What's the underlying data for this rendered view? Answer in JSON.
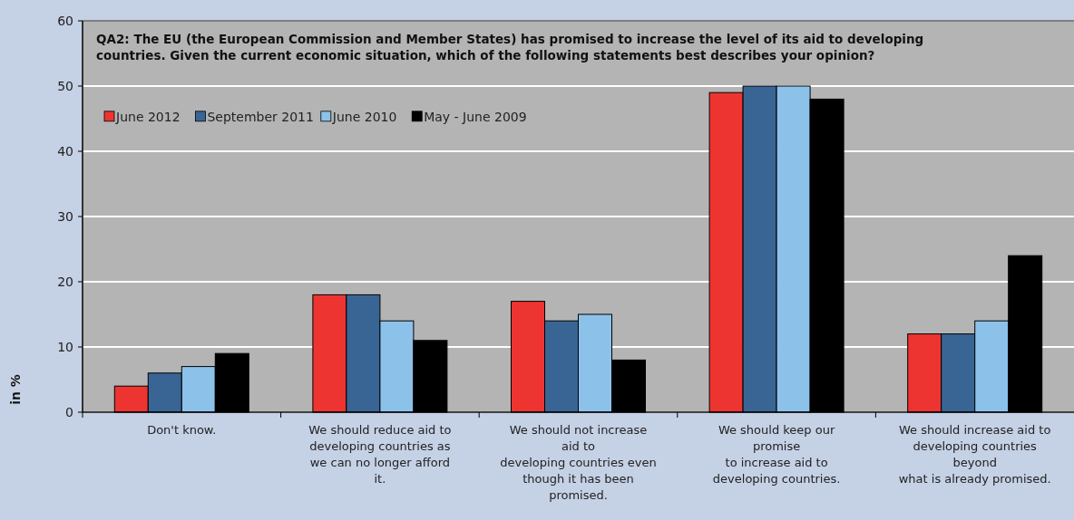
{
  "chart_data": {
    "type": "bar",
    "title": "QA2: The EU (the European Commission and Member States) has promised to increase the level of its aid to developing\ncountries. Given the current economic situation, which of the following statements best describes your opinion?",
    "ylabel": "in %",
    "categories": [
      "Don't know.",
      "We should reduce aid to\ndeveloping countries as\nwe can no longer afford\nit.",
      "We should not increase\naid to\ndeveloping countries even\nthough it has been\npromised.",
      "We should keep our\npromise\nto increase aid to\ndeveloping countries.",
      "We should increase aid to\ndeveloping countries\nbeyond\nwhat is already promised."
    ],
    "series": [
      {
        "name": "June 2012",
        "color": "#ee3430",
        "values": [
          4,
          18,
          17,
          49,
          12
        ]
      },
      {
        "name": "September 2011",
        "color": "#396595",
        "values": [
          6,
          18,
          14,
          50,
          12
        ]
      },
      {
        "name": "June 2010",
        "color": "#8cc2ea",
        "values": [
          7,
          14,
          15,
          50,
          14
        ]
      },
      {
        "name": "May - June 2009",
        "color": "#000000",
        "values": [
          9,
          11,
          8,
          48,
          24
        ]
      }
    ],
    "ylim": [
      0,
      60
    ],
    "yticks": [
      0,
      10,
      20,
      30,
      40,
      50,
      60
    ],
    "grid": "y",
    "legend": "top left"
  }
}
